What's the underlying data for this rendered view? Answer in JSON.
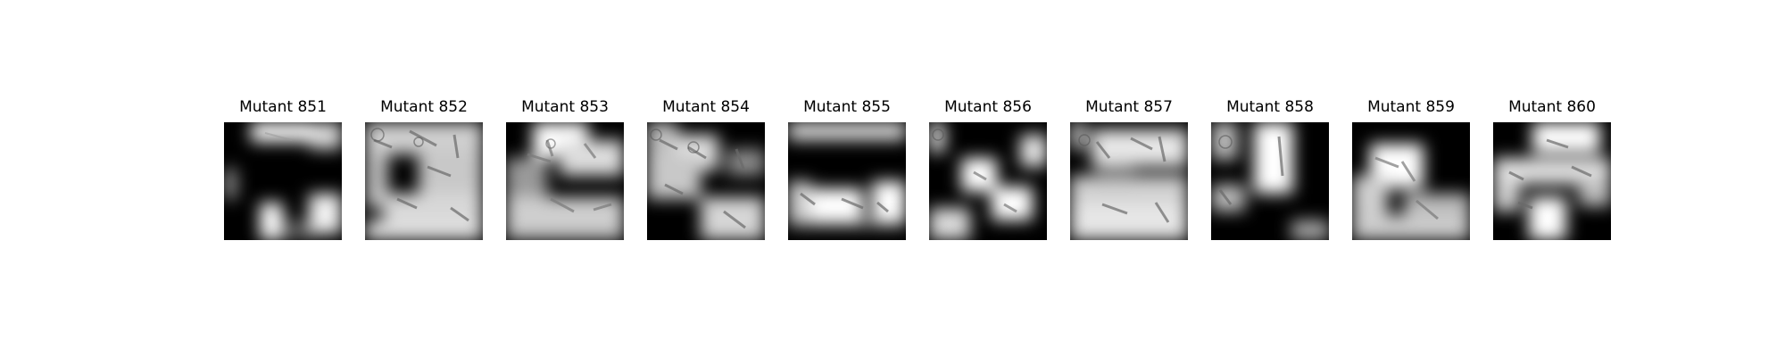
{
  "figure": {
    "panels": [
      {
        "title": "Mutant 851"
      },
      {
        "title": "Mutant 852"
      },
      {
        "title": "Mutant 853"
      },
      {
        "title": "Mutant 854"
      },
      {
        "title": "Mutant 855"
      },
      {
        "title": "Mutant 856"
      },
      {
        "title": "Mutant 857"
      },
      {
        "title": "Mutant 858"
      },
      {
        "title": "Mutant 859"
      },
      {
        "title": "Mutant 860"
      }
    ]
  }
}
